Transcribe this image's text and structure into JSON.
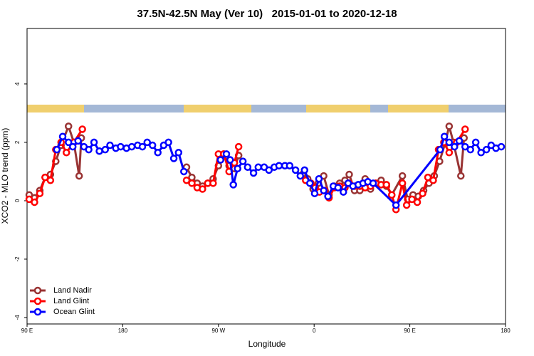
{
  "chart_data": {
    "type": "line",
    "title": "37.5N-42.5N May (Ver 10)   2015-01-01 to 2020-12-18",
    "x_label": "Longitude",
    "y_label": "XCO2 - MLO trend (ppm)",
    "xlim": [
      90,
      540
    ],
    "xticks": [
      {
        "value": 90,
        "label": "90 E"
      },
      {
        "value": 180,
        "label": "180"
      },
      {
        "value": 270,
        "label": "90 W"
      },
      {
        "value": 360,
        "label": "0"
      },
      {
        "value": 450,
        "label": "90 E"
      },
      {
        "value": 540,
        "label": "180"
      }
    ],
    "ylim": [
      -4.22,
      5.9
    ],
    "yticks": [
      -4,
      -2,
      0,
      2,
      4
    ],
    "legend": "lower left",
    "series": [
      {
        "name": "Land Nadir",
        "color": "#993333",
        "x": [
          92,
          97,
          102,
          107,
          112,
          117,
          122,
          129,
          134,
          139,
          141,
          150,
          240,
          245,
          250,
          255,
          260,
          265,
          270,
          275,
          280,
          285,
          289,
          320,
          349,
          354,
          359,
          364,
          369,
          374,
          379,
          384,
          389,
          393,
          398,
          403,
          408,
          413,
          418,
          423,
          428,
          433,
          443,
          448,
          453,
          458,
          463,
          468,
          473,
          478,
          483,
          487,
          491,
          498,
          501
        ],
        "values": [
          0.2,
          0.1,
          0.35,
          0.8,
          0.9,
          1.35,
          1.9,
          2.55,
          2.0,
          0.85,
          2.15,
          null,
          1.15,
          0.8,
          0.6,
          0.5,
          0.6,
          0.75,
          1.2,
          1.6,
          1.2,
          1.1,
          1.55,
          null,
          0.9,
          0.75,
          0.4,
          0.6,
          0.85,
          0.2,
          0.5,
          0.6,
          0.7,
          0.9,
          0.35,
          0.35,
          0.75,
          0.4,
          0.6,
          0.7,
          0.5,
          0.2,
          0.85,
          0.05,
          0.2,
          0.15,
          0.35,
          0.6,
          0.85,
          1.35,
          1.95,
          2.55,
          2.0,
          0.85,
          2.15
        ]
      },
      {
        "name": "Land Glint",
        "color": "#ff0000",
        "x": [
          92,
          97,
          102,
          107,
          112,
          117,
          122,
          127,
          134,
          142,
          150,
          240,
          245,
          250,
          255,
          260,
          265,
          270,
          275,
          280,
          285,
          289,
          320,
          352,
          357,
          361,
          365,
          370,
          374,
          379,
          384,
          389,
          393,
          398,
          403,
          408,
          413,
          418,
          423,
          428,
          433,
          437,
          443,
          447,
          452,
          457,
          462,
          467,
          472,
          477,
          482,
          487,
          494,
          502
        ],
        "values": [
          0.05,
          -0.05,
          0.25,
          0.8,
          0.7,
          1.75,
          2.0,
          1.65,
          2.0,
          2.45,
          null,
          0.7,
          0.6,
          0.45,
          0.4,
          0.6,
          0.6,
          1.6,
          1.6,
          1.0,
          1.3,
          1.85,
          null,
          0.7,
          0.6,
          0.45,
          0.3,
          0.35,
          0.1,
          0.45,
          0.5,
          0.45,
          0.6,
          0.5,
          0.5,
          0.45,
          0.5,
          0.6,
          0.55,
          0.55,
          0.2,
          -0.3,
          0.6,
          -0.15,
          0.05,
          -0.05,
          0.25,
          0.8,
          0.7,
          1.75,
          2.0,
          1.65,
          2.0,
          2.45
        ]
      },
      {
        "name": "Ocean Glint",
        "color": "#0000ff",
        "x": [
          118,
          123.5,
          129,
          133,
          138,
          143.5,
          148,
          153,
          158,
          163.5,
          168,
          173.5,
          178,
          183.5,
          188.5,
          194,
          198.5,
          203,
          208,
          213,
          218.5,
          223,
          228,
          232.5,
          237.5,
          255,
          272,
          277.5,
          281,
          284,
          288,
          293,
          297.5,
          303,
          307.5,
          313,
          317.5,
          322.5,
          327,
          332.5,
          337,
          342.5,
          347,
          351,
          356,
          360.5,
          364.5,
          369,
          373,
          378,
          382.5,
          387.5,
          392,
          396.5,
          401.5,
          406,
          410.5,
          415.5,
          437,
          478.5,
          482.5,
          487,
          492,
          496.5,
          502,
          507,
          512,
          517,
          522,
          526.5,
          531,
          536
        ],
        "values": [
          1.75,
          2.2,
          2.0,
          1.85,
          2.05,
          1.85,
          1.75,
          2.0,
          1.7,
          1.75,
          1.9,
          1.8,
          1.85,
          1.8,
          1.85,
          1.9,
          1.85,
          2.0,
          1.9,
          1.65,
          1.9,
          2.0,
          1.45,
          1.65,
          1.0,
          null,
          1.4,
          1.6,
          1.4,
          0.55,
          1.1,
          1.35,
          1.15,
          0.95,
          1.15,
          1.15,
          1.05,
          1.15,
          1.2,
          1.2,
          1.2,
          1.05,
          0.85,
          1.05,
          0.6,
          0.25,
          0.75,
          0.35,
          0.15,
          0.5,
          0.45,
          0.3,
          0.6,
          0.5,
          0.55,
          0.6,
          0.65,
          0.6,
          -0.15,
          1.75,
          2.2,
          2.0,
          1.85,
          2.05,
          1.85,
          1.75,
          2.0,
          1.65,
          1.75,
          1.9,
          1.8,
          1.85
        ]
      }
    ]
  }
}
